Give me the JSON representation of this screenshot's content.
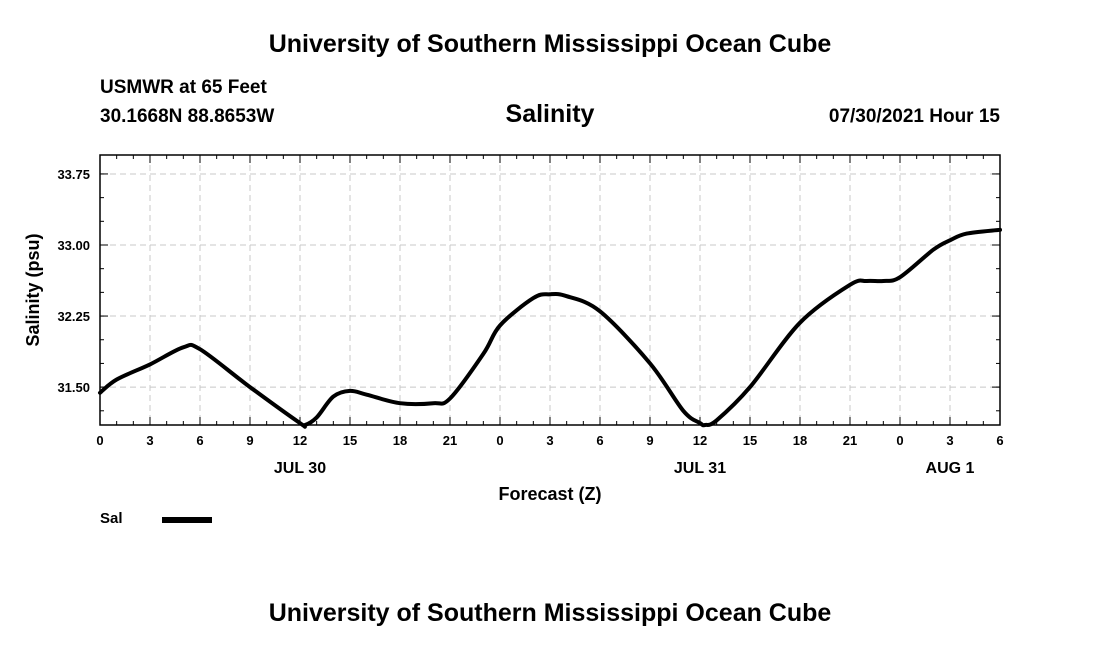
{
  "header": {
    "title_top": "University of Southern Mississippi Ocean Cube",
    "station": "USMWR at 65 Feet",
    "coordinates": "30.1668N  88.8653W",
    "chart_title": "Salinity",
    "datetime": "07/30/2021 Hour 15"
  },
  "footer": {
    "title_bottom": "University of Southern Mississippi Ocean Cube"
  },
  "legend": {
    "label": "Sal"
  },
  "colors": {
    "line": "#000000",
    "grid": "#c8c8c8",
    "background": "#ffffff"
  },
  "chart_data": {
    "type": "line",
    "title": "Salinity",
    "xlabel": "Forecast (Z)",
    "ylabel": "Salinity (psu)",
    "xlim": [
      0,
      54
    ],
    "ylim": [
      31.1,
      33.95
    ],
    "x_ticks": [
      0,
      3,
      6,
      9,
      12,
      15,
      18,
      21,
      24,
      27,
      30,
      33,
      36,
      39,
      42,
      45,
      48,
      51,
      54
    ],
    "x_tick_labels": [
      "0",
      "3",
      "6",
      "9",
      "12",
      "15",
      "18",
      "21",
      "0",
      "3",
      "6",
      "9",
      "12",
      "15",
      "18",
      "21",
      "0",
      "3",
      "6"
    ],
    "y_ticks": [
      31.5,
      32.25,
      33.0,
      33.75
    ],
    "y_tick_labels": [
      "31.50",
      "32.25",
      "33.00",
      "33.75"
    ],
    "date_labels": [
      {
        "x": 12,
        "label": "JUL 30"
      },
      {
        "x": 36,
        "label": "JUL 31"
      },
      {
        "x": 51,
        "label": "AUG 1"
      }
    ],
    "grid": true,
    "legend_position": "bottom-left",
    "series": [
      {
        "name": "Sal",
        "x": [
          0,
          1,
          3,
          5,
          6,
          9,
          12,
          12.3,
          13,
          14,
          15,
          16,
          18,
          20,
          21,
          23,
          24,
          26,
          27,
          28,
          30,
          33,
          35,
          36,
          36.3,
          37,
          39,
          42,
          45,
          46,
          47,
          48,
          50,
          51,
          52,
          54
        ],
        "values": [
          31.44,
          31.58,
          31.74,
          31.92,
          31.9,
          31.5,
          31.12,
          31.1,
          31.18,
          31.4,
          31.46,
          31.42,
          31.33,
          31.33,
          31.38,
          31.85,
          32.15,
          32.44,
          32.48,
          32.46,
          32.3,
          31.75,
          31.25,
          31.12,
          31.1,
          31.15,
          31.5,
          32.18,
          32.58,
          32.62,
          32.62,
          32.66,
          32.95,
          33.05,
          33.12,
          33.16
        ]
      }
    ]
  }
}
